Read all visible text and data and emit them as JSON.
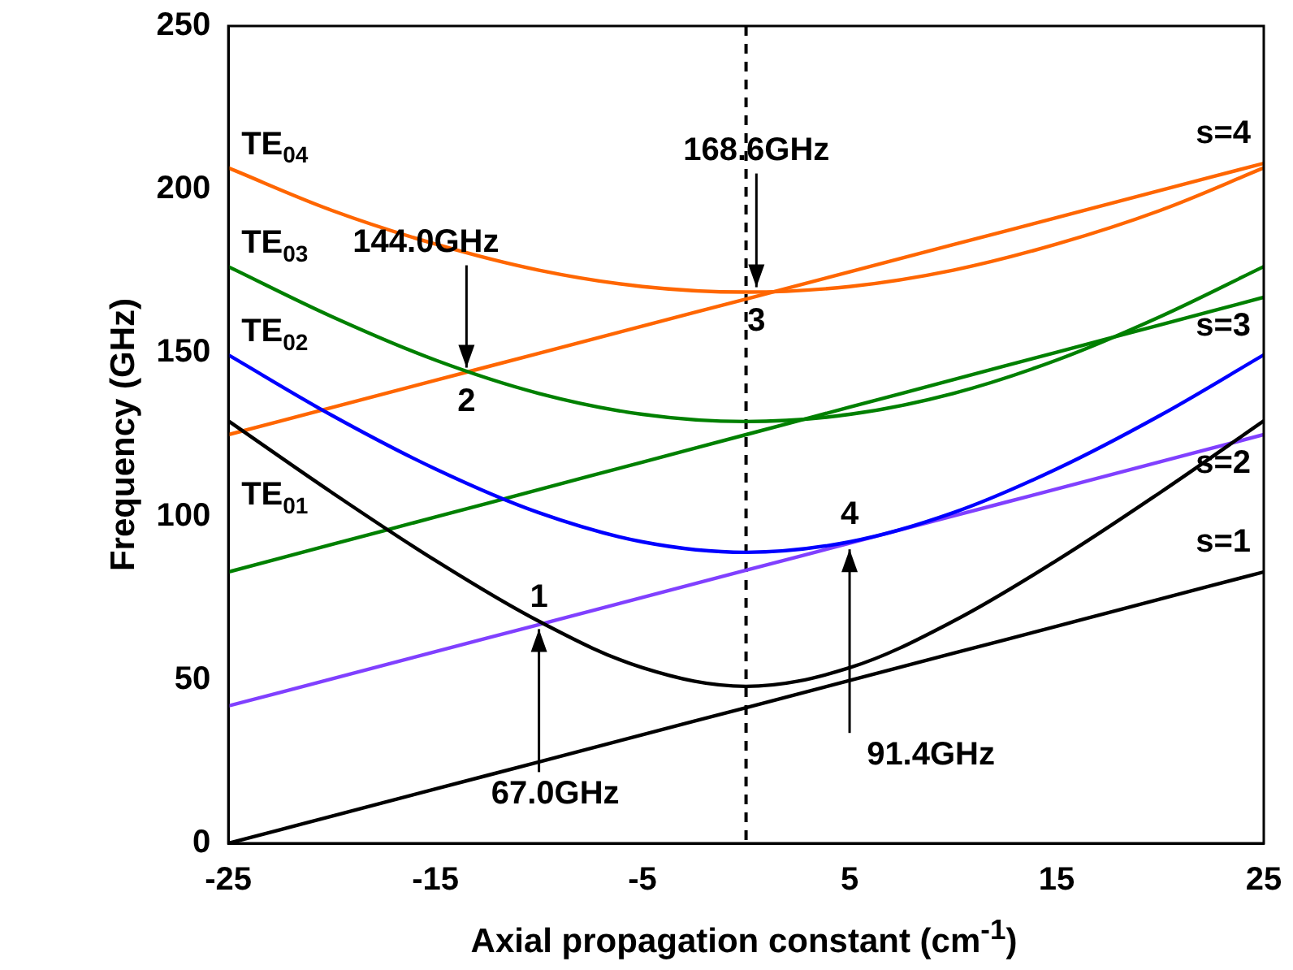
{
  "chart_data": {
    "type": "line",
    "xlabel": "Axial propagation constant (cm$^{-1}$)",
    "ylabel": "Frequency (GHz)",
    "x": [
      -25,
      -20,
      -15,
      -10,
      -5,
      0,
      5,
      10,
      15,
      20,
      25
    ],
    "series": [
      {
        "name": "TE$_{01}$",
        "color": "#000000",
        "values": [
          129.2,
          107.3,
          86.5,
          67.9,
          53.7,
          48,
          53.7,
          67.9,
          86.5,
          107.3,
          129.2
        ]
      },
      {
        "name": "TE$_{02}$",
        "color": "#0000ff",
        "values": [
          149.4,
          130.9,
          114.5,
          101.1,
          92.2,
          89,
          92.2,
          101.1,
          114.5,
          130.9,
          149.4
        ]
      },
      {
        "name": "TE$_{03}$",
        "color": "#008000",
        "values": [
          176.4,
          161.1,
          147.8,
          137.6,
          131.2,
          129,
          131.2,
          137.6,
          147.8,
          161.1,
          176.4
        ]
      },
      {
        "name": "TE$_{04}$",
        "color": "#ff6600",
        "values": [
          206.6,
          193.6,
          183.3,
          175.3,
          170.3,
          168.6,
          170.3,
          175.3,
          183.3,
          193.6,
          206.6
        ]
      },
      {
        "name": "s=1",
        "color": "#000000",
        "values": [
          0,
          8.3,
          16.6,
          24.9,
          33.2,
          41.5,
          49.8,
          58.1,
          66.4,
          74.7,
          83
        ]
      },
      {
        "name": "s=2",
        "color": "#8040ff",
        "values": [
          42,
          50.3,
          58.6,
          66.9,
          75.2,
          83.5,
          91.8,
          100.1,
          108.4,
          116.7,
          125
        ]
      },
      {
        "name": "s=3",
        "color": "#008000",
        "values": [
          83,
          91.4,
          99.8,
          108.2,
          116.6,
          125,
          133.4,
          141.8,
          150.2,
          158.6,
          167
        ]
      },
      {
        "name": "s=4",
        "color": "#ff6600",
        "values": [
          125,
          133.3,
          141.6,
          149.9,
          158.2,
          166.5,
          174.8,
          183.1,
          191.4,
          199.7,
          208
        ]
      }
    ],
    "xlim": [
      -25,
      25
    ],
    "xticks": [
      -25,
      -15,
      -5,
      5,
      15,
      25
    ],
    "ylim": [
      0,
      250
    ],
    "yticks": [
      0,
      50,
      100,
      150,
      200,
      250
    ],
    "ref_lines": [
      {
        "axis": "x",
        "value": 0,
        "color": "#000000",
        "line_style": "dashed"
      }
    ],
    "annotations": [
      {
        "text": "1",
        "x": -10,
        "y": 67
      },
      {
        "text": "2",
        "x": -13.5,
        "y": 144
      },
      {
        "text": "3",
        "x": 0.5,
        "y": 168.6
      },
      {
        "text": "4",
        "x": 5,
        "y": 91.4
      },
      {
        "text": "67.0GHz",
        "x": -10,
        "y": 67
      },
      {
        "text": "144.0GHz",
        "x": -13.5,
        "y": 144
      },
      {
        "text": "168.6GHz",
        "x": 0.5,
        "y": 168.6
      },
      {
        "text": "91.4GHz",
        "x": 5,
        "y": 91.4
      }
    ],
    "grid": false,
    "legend": false,
    "marker": "none",
    "line_style": "solid"
  }
}
